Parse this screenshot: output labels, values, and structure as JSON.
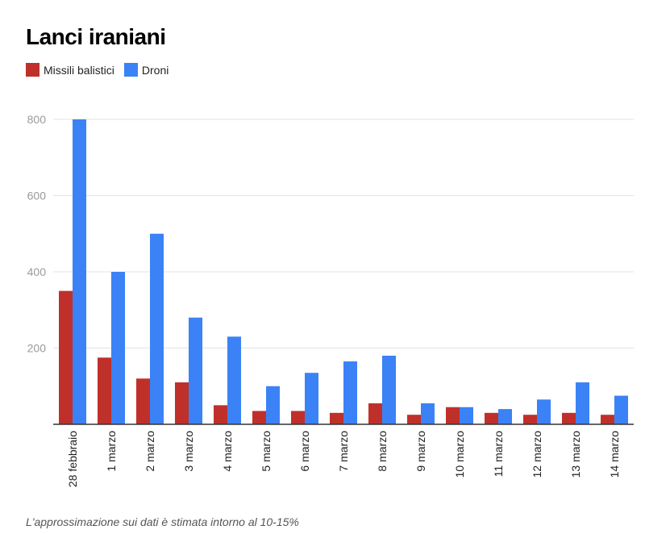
{
  "chart_data": {
    "type": "bar",
    "title": "Lanci iraniani",
    "xlabel": "",
    "ylabel": "",
    "ylim": [
      0,
      800
    ],
    "yticks": [
      "200",
      "400",
      "600",
      "800"
    ],
    "categories": [
      "28 febbraio",
      "1 marzo",
      "2 marzo",
      "3 marzo",
      "4 marzo",
      "5 marzo",
      "6 marzo",
      "7 marzo",
      "8 marzo",
      "9 marzo",
      "10 marzo",
      "11 marzo",
      "12 marzo",
      "13 marzo",
      "14 marzo"
    ],
    "series": [
      {
        "name": "Missili balistici",
        "color": "#c0302b",
        "values": [
          350,
          175,
          120,
          110,
          50,
          35,
          35,
          30,
          55,
          25,
          45,
          30,
          25,
          30,
          25
        ]
      },
      {
        "name": "Droni",
        "color": "#3b82f6",
        "values": [
          800,
          400,
          500,
          280,
          230,
          100,
          135,
          165,
          180,
          55,
          45,
          40,
          65,
          110,
          75
        ]
      }
    ],
    "grid": true,
    "legend": "top-left"
  },
  "footer": {
    "note": "L'approssimazione sui dati è stimata intorno al 10-15%"
  }
}
